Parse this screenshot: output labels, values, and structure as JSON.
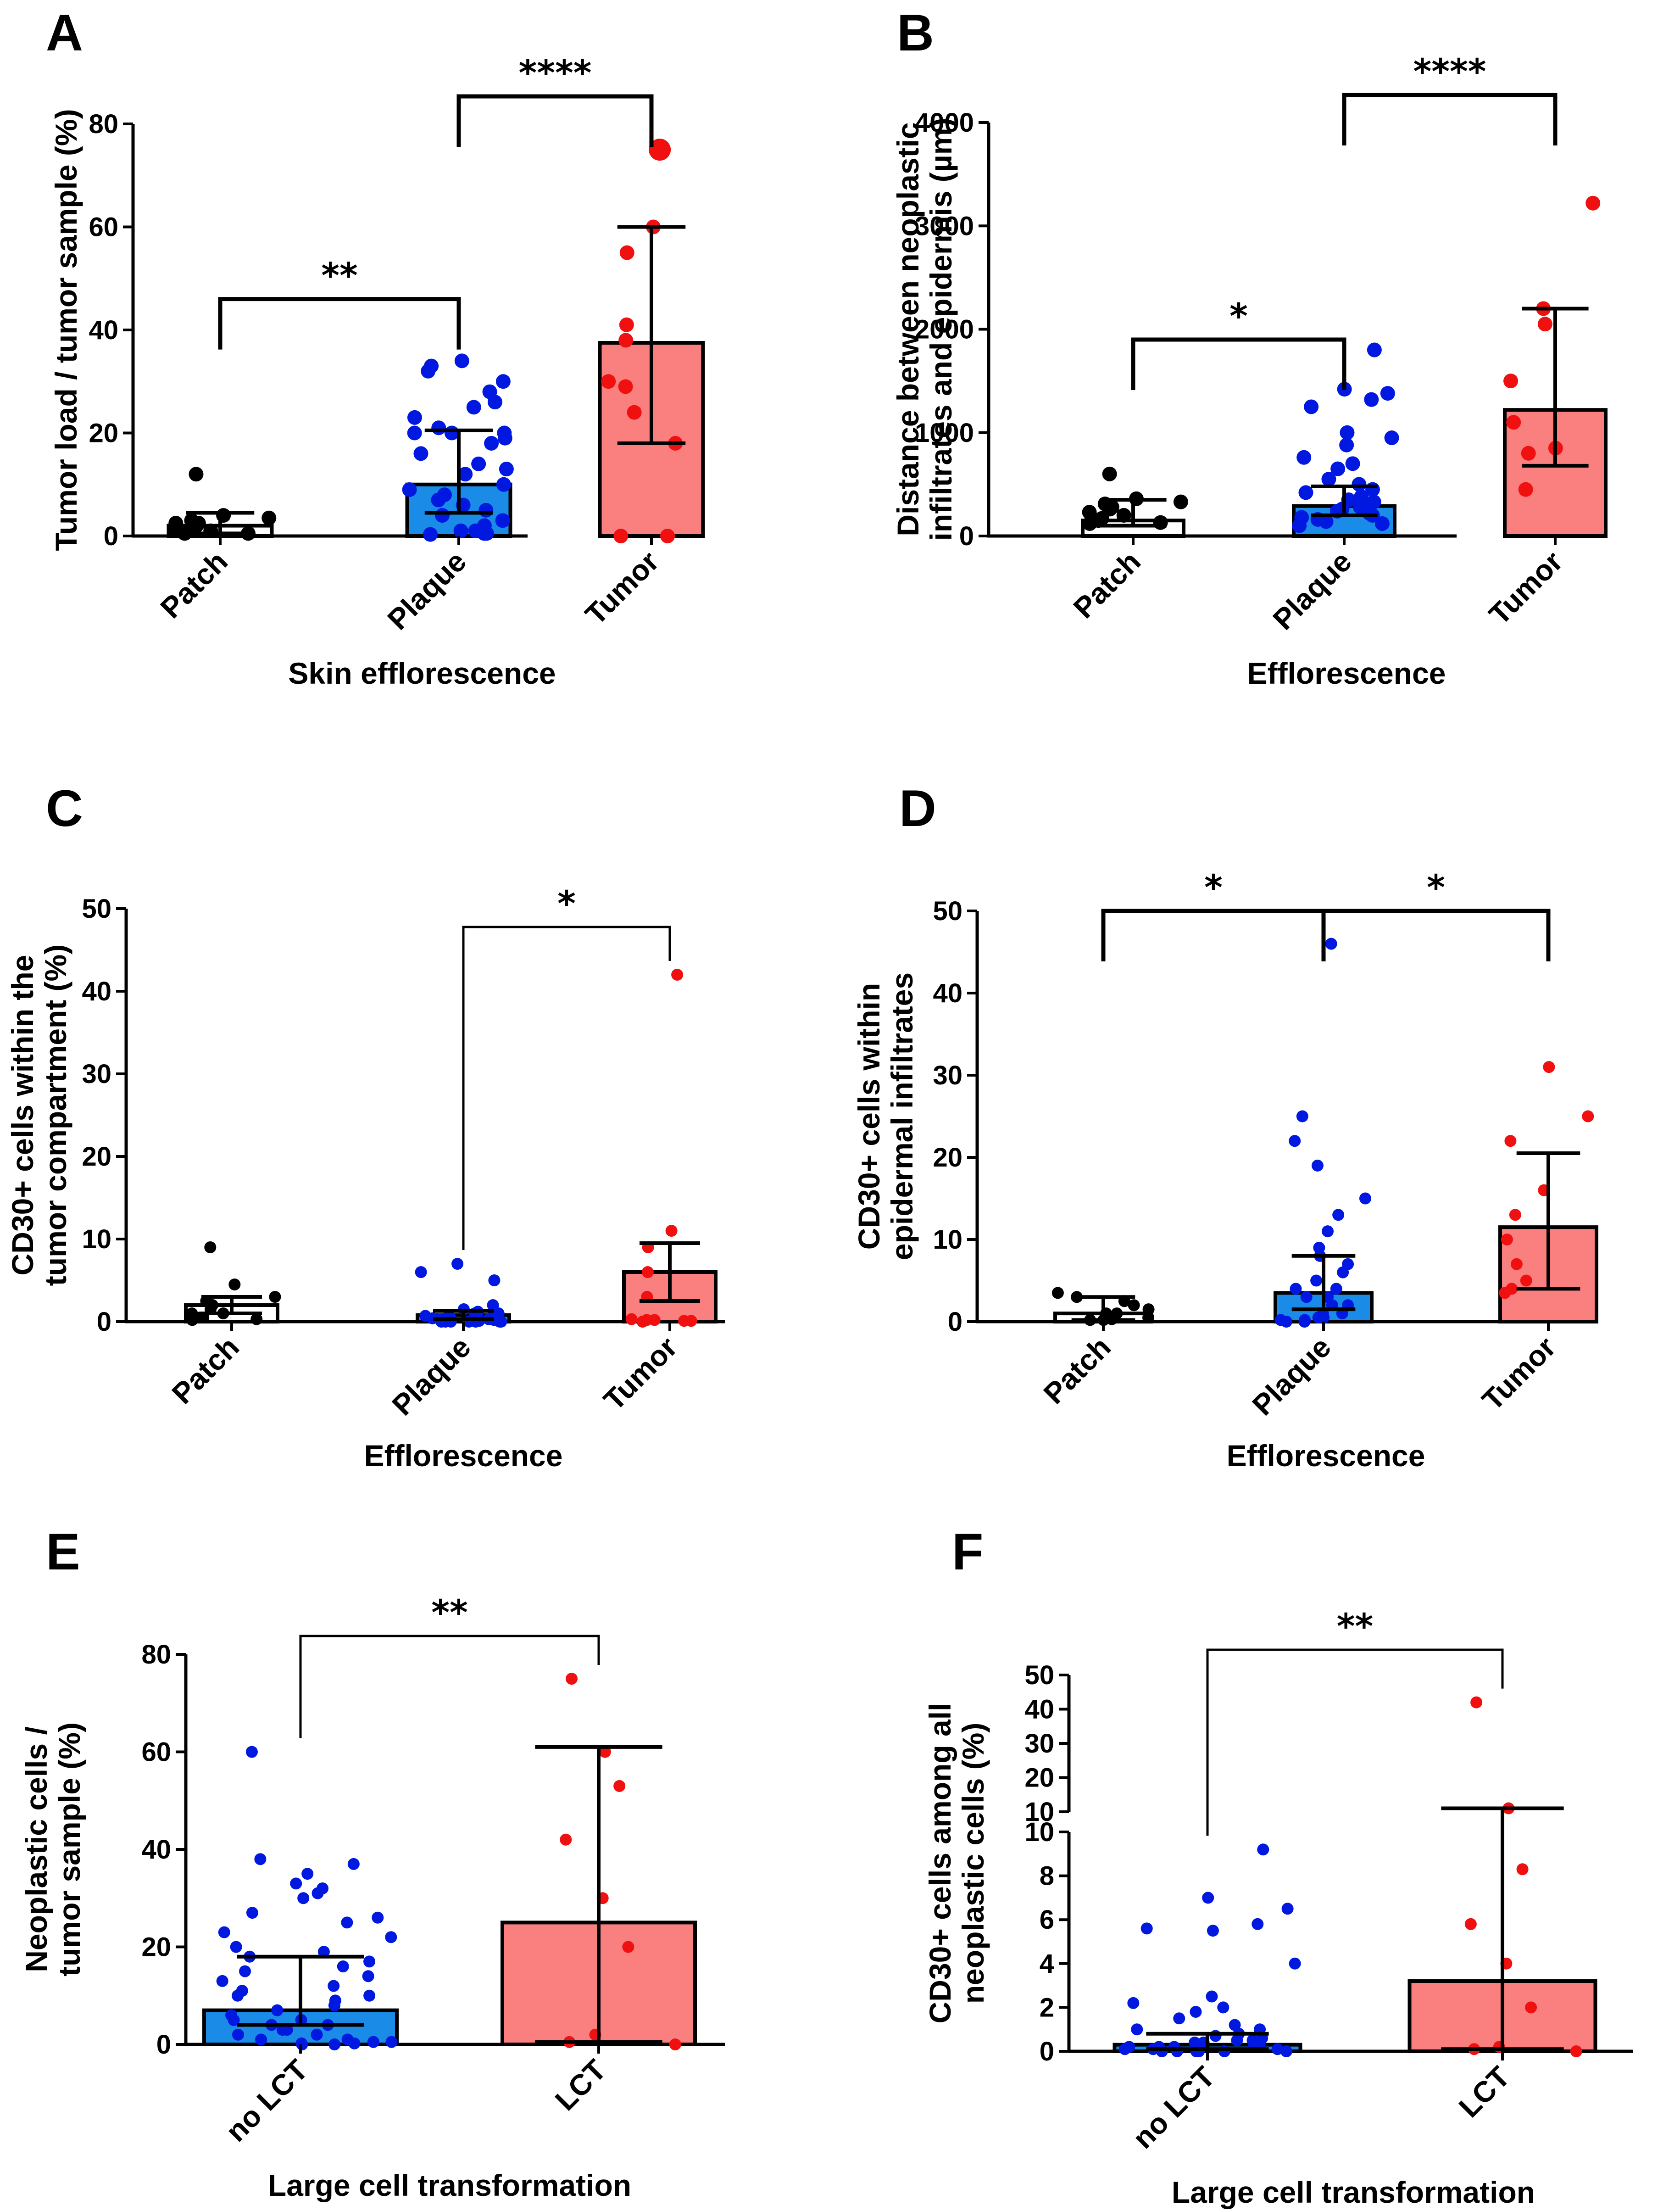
{
  "colors": {
    "patch": "#000000",
    "plaque_fill": "#1a8ce8",
    "plaque_dot": "#0018e0",
    "tumor_fill": "#fa8080",
    "tumor_dot": "#f01010",
    "axis": "#000000"
  },
  "chart_data": [
    {
      "panel": "A",
      "type": "bar",
      "title": "",
      "ylabel": [
        "Tumor load / tumor sample (%)"
      ],
      "xlabel": "Skin efflorescence",
      "ylim": [
        0,
        80
      ],
      "yticks": [
        0,
        20,
        40,
        60,
        80
      ],
      "categories": [
        "Patch",
        "Plaque",
        "Tumor"
      ],
      "bars": [
        {
          "name": "Patch",
          "mean": 2,
          "err_low": 0.5,
          "err_high": 4.5,
          "style": "patch",
          "points": [
            12,
            4,
            3.5,
            3,
            2.5,
            2,
            1.5,
            1,
            1,
            0.5,
            0.5,
            2.5
          ]
        },
        {
          "name": "Plaque",
          "mean": 10,
          "err_low": 4.5,
          "err_high": 20.5,
          "style": "plaque",
          "points": [
            34,
            33,
            32,
            30,
            28,
            26,
            25,
            23,
            21,
            20,
            20,
            20,
            19,
            18,
            16,
            14,
            13,
            12,
            10,
            9,
            8,
            7,
            6,
            5,
            4,
            3,
            2,
            1,
            1,
            0.5,
            0.5,
            0.3
          ]
        },
        {
          "name": "Tumor",
          "mean": 37.5,
          "err_low": 18,
          "err_high": 60,
          "style": "tumor",
          "points": [
            75,
            60,
            55,
            41,
            38,
            30,
            29,
            24,
            18,
            0,
            0
          ]
        }
      ],
      "comparisons": [
        {
          "from": 0,
          "to": 1,
          "label": "**"
        },
        {
          "from": 1,
          "to": 2,
          "label": "****"
        }
      ]
    },
    {
      "panel": "B",
      "type": "bar",
      "title": "",
      "ylabel": [
        "Distance between neoplastic",
        "infiltrates and epidermis  (µm)"
      ],
      "xlabel": "Efflorescence",
      "ylim": [
        0,
        4000
      ],
      "yticks": [
        0,
        1000,
        2000,
        3000,
        4000
      ],
      "categories": [
        "Patch",
        "Plaque",
        "Tumor"
      ],
      "bars": [
        {
          "name": "Patch",
          "mean": 150,
          "err_low": 100,
          "err_high": 350,
          "style": "patch",
          "points": [
            600,
            360,
            330,
            310,
            280,
            260,
            230,
            200,
            170,
            150,
            130,
            120
          ]
        },
        {
          "name": "Plaque",
          "mean": 290,
          "err_low": 200,
          "err_high": 480,
          "style": "plaque",
          "points": [
            1800,
            1420,
            1380,
            1320,
            1250,
            1000,
            950,
            880,
            760,
            700,
            650,
            550,
            500,
            450,
            420,
            380,
            350,
            330,
            300,
            280,
            260,
            240,
            220,
            200,
            180,
            160,
            140,
            120,
            100
          ]
        },
        {
          "name": "Tumor",
          "mean": 1220,
          "err_low": 680,
          "err_high": 2200,
          "style": "tumor",
          "points": [
            3220,
            2200,
            2050,
            1500,
            1100,
            850,
            800,
            450
          ]
        }
      ],
      "comparisons": [
        {
          "from": 0,
          "to": 1,
          "label": "*"
        },
        {
          "from": 1,
          "to": 2,
          "label": "****"
        }
      ]
    },
    {
      "panel": "C",
      "type": "bar",
      "title": "",
      "ylabel": [
        "CD30+ cells within the",
        "tumor compartment (%)"
      ],
      "xlabel": "Efflorescence",
      "ylim": [
        0,
        50
      ],
      "yticks": [
        0,
        10,
        20,
        30,
        40,
        50
      ],
      "categories": [
        "Patch",
        "Plaque",
        "Tumor"
      ],
      "bars": [
        {
          "name": "Patch",
          "mean": 2,
          "err_low": 1,
          "err_high": 3,
          "style": "patch",
          "points": [
            9,
            4.5,
            3,
            2.5,
            2,
            1.5,
            1,
            1,
            0.5,
            0.5,
            0.3,
            0.2
          ]
        },
        {
          "name": "Plaque",
          "mean": 0.8,
          "err_low": 0.3,
          "err_high": 1.3,
          "style": "plaque",
          "points": [
            7,
            6,
            5,
            2,
            1.5,
            1.2,
            1,
            1,
            0.8,
            0.7,
            0.6,
            0.5,
            0.5,
            0.4,
            0.3,
            0.3,
            0.2,
            0.2,
            0.1,
            0.1,
            0.1,
            0,
            0,
            0,
            0,
            0,
            0,
            0
          ]
        },
        {
          "name": "Tumor",
          "mean": 6,
          "err_low": 2.5,
          "err_high": 9.5,
          "style": "tumor",
          "points": [
            42,
            11,
            9,
            6,
            3,
            0.3,
            0.2,
            0.2,
            0.1,
            0.1,
            0
          ]
        }
      ],
      "comparisons": [
        {
          "from": 1,
          "to": 2,
          "label": "*",
          "thin": true
        }
      ]
    },
    {
      "panel": "D",
      "type": "bar",
      "title": "",
      "ylabel": [
        "CD30+ cells within",
        "epidermal infiltrates"
      ],
      "xlabel": "Efflorescence",
      "ylim": [
        0,
        50
      ],
      "yticks": [
        0,
        10,
        20,
        30,
        40,
        50
      ],
      "categories": [
        "Patch",
        "Plaque",
        "Tumor"
      ],
      "bars": [
        {
          "name": "Patch",
          "mean": 1,
          "err_low": 0.2,
          "err_high": 3,
          "style": "patch",
          "points": [
            3.5,
            3,
            2.5,
            2,
            1.5,
            1,
            1,
            0.5,
            0.3,
            0.2,
            0.2
          ]
        },
        {
          "name": "Plaque",
          "mean": 3.5,
          "err_low": 1.5,
          "err_high": 8,
          "style": "plaque",
          "points": [
            46,
            25,
            22,
            19,
            15,
            13,
            11,
            9,
            8,
            7,
            6,
            5,
            4,
            4,
            3,
            3,
            2,
            2,
            1,
            1,
            0.5,
            0.5,
            0.2,
            0.2,
            0,
            0
          ]
        },
        {
          "name": "Tumor",
          "mean": 11.5,
          "err_low": 4,
          "err_high": 20.5,
          "style": "tumor",
          "points": [
            31,
            25,
            22,
            16,
            13,
            10,
            7,
            5,
            4,
            3.5
          ]
        }
      ],
      "comparisons": [
        {
          "from": 0,
          "to": 1,
          "label": "*"
        },
        {
          "from": 1,
          "to": 2,
          "label": "*"
        }
      ]
    },
    {
      "panel": "E",
      "type": "bar",
      "title": "",
      "ylabel": [
        "Neoplastic cells /",
        "tumor sample (%)"
      ],
      "xlabel": "Large cell transformation",
      "ylim": [
        0,
        80
      ],
      "yticks": [
        0,
        20,
        40,
        60,
        80
      ],
      "categories": [
        "no LCT",
        "LCT"
      ],
      "bars": [
        {
          "name": "no LCT",
          "mean": 7,
          "err_low": 4,
          "err_high": 18,
          "style": "plaque",
          "points": [
            60,
            38,
            37,
            35,
            33,
            32,
            31,
            30,
            27,
            26,
            25,
            23,
            22,
            20,
            19,
            18,
            17,
            16,
            15,
            14,
            13,
            12,
            11,
            10,
            10,
            9,
            8,
            7,
            6,
            5,
            5,
            4,
            4,
            3,
            3,
            2,
            2,
            1,
            1,
            0.5,
            0.5,
            0.2,
            0.2,
            0,
            0
          ]
        },
        {
          "name": "LCT",
          "mean": 25,
          "err_low": 0.5,
          "err_high": 61,
          "style": "tumor",
          "points": [
            75,
            60,
            53,
            42,
            30,
            20,
            2,
            0.5,
            0
          ]
        }
      ],
      "comparisons": [
        {
          "from": 0,
          "to": 1,
          "label": "**",
          "thin": true
        }
      ]
    },
    {
      "panel": "F",
      "type": "bar",
      "broken_axis": true,
      "title": "",
      "ylabel": [
        "CD30+ cells among all",
        "neoplastic cells (%)"
      ],
      "xlabel": "Large cell transformation",
      "ylim_lower": [
        0,
        10
      ],
      "yticks_lower": [
        0,
        2,
        4,
        6,
        8,
        10
      ],
      "ylim_upper": [
        10,
        50
      ],
      "yticks_upper": [
        10,
        20,
        30,
        40,
        50
      ],
      "categories": [
        "no LCT",
        "LCT"
      ],
      "bars": [
        {
          "name": "no LCT",
          "mean": 0.3,
          "err_low": 0.1,
          "err_high": 0.8,
          "style": "plaque",
          "points": [
            9.2,
            7,
            6.5,
            5.8,
            5.6,
            5.5,
            4,
            2.5,
            2.2,
            2,
            1.8,
            1.5,
            1.2,
            1,
            1,
            0.8,
            0.7,
            0.6,
            0.5,
            0.5,
            0.4,
            0.4,
            0.3,
            0.3,
            0.2,
            0.2,
            0.2,
            0.1,
            0.1,
            0.1,
            0,
            0,
            0,
            0,
            0,
            0
          ]
        },
        {
          "name": "LCT",
          "mean": 3.2,
          "err_low": 0.1,
          "err_high": 11,
          "style": "tumor",
          "points": [
            42,
            11,
            8.3,
            5.8,
            4,
            2,
            0.2,
            0.1,
            0
          ]
        }
      ],
      "comparisons": [
        {
          "from": 0,
          "to": 1,
          "label": "**",
          "thin": true
        }
      ]
    }
  ]
}
